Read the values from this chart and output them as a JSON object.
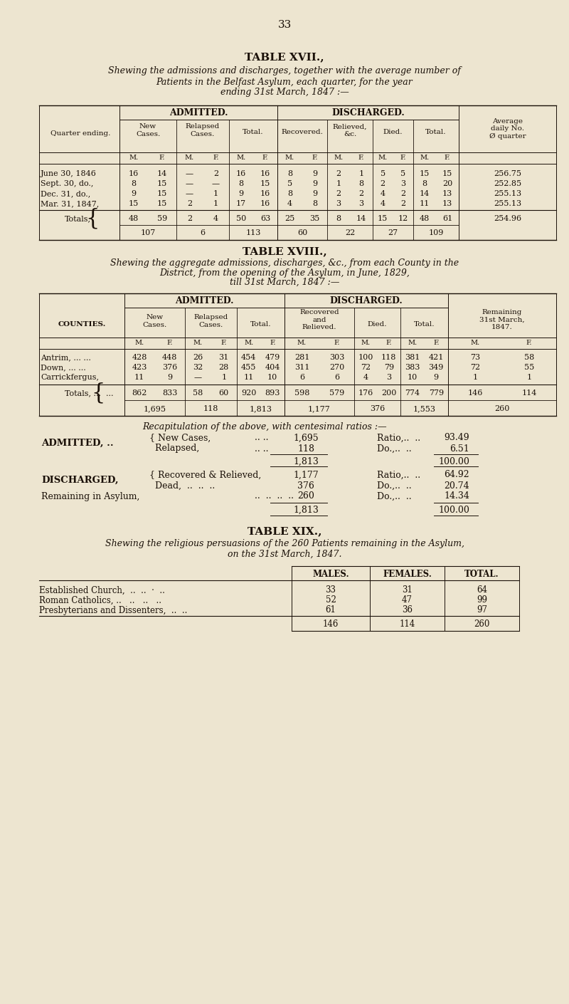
{
  "bg_color": "#ede5d0",
  "text_color": "#1a1008",
  "page_number": "33",
  "t17_title": "TABLE XVII.,",
  "t17_sub1": "Shewing the admissions and discharges, together with the average number of",
  "t17_sub2": "Patients in the Belfast Asylum, each quarter, for the year",
  "t17_sub3": "ending 31st March, 1847 :—",
  "t17_rows": [
    {
      "label": "June 30, 1846",
      "d": [
        "16",
        "14",
        "—",
        "2",
        "16",
        "16",
        "8",
        "9",
        "2",
        "1",
        "5",
        "5",
        "15",
        "15"
      ],
      "avg": "256.75"
    },
    {
      "label": "Sept. 30, do.,",
      "d": [
        "8",
        "15",
        "—",
        "—",
        "8",
        "15",
        "5",
        "9",
        "1",
        "8",
        "2",
        "3",
        "8",
        "20"
      ],
      "avg": "252.85"
    },
    {
      "label": "Dec. 31, do.,",
      "d": [
        "9",
        "15",
        "—",
        "1",
        "9",
        "16",
        "8",
        "9",
        "2",
        "2",
        "4",
        "2",
        "14",
        "13"
      ],
      "avg": "255.13"
    },
    {
      "label": "Mar. 31, 1847,",
      "d": [
        "15",
        "15",
        "2",
        "1",
        "17",
        "16",
        "4",
        "8",
        "3",
        "3",
        "4",
        "2",
        "11",
        "13"
      ],
      "avg": "255.13"
    }
  ],
  "t17_tot1": [
    "48",
    "59",
    "2",
    "4",
    "50",
    "63",
    "25",
    "35",
    "8",
    "14",
    "15",
    "12",
    "48",
    "61"
  ],
  "t17_tot2": [
    "107",
    "6",
    "113",
    "60",
    "22",
    "27",
    "109"
  ],
  "t17_tot_avg": "254.96",
  "t18_title": "TABLE XVIII.,",
  "t18_sub1": "Shewing the aggregate admissions, discharges, &c., from each County in the",
  "t18_sub2": "District, from the opening of the Asylum, in June, 1829,",
  "t18_sub3": "till 31st March, 1847 :—",
  "t18_rows": [
    {
      "label": "Antrim, ... ...",
      "d": [
        "428",
        "448",
        "26",
        "31",
        "454",
        "479",
        "281",
        "303",
        "100",
        "118",
        "381",
        "421",
        "73",
        "58"
      ]
    },
    {
      "label": "Down, ... ...",
      "d": [
        "423",
        "376",
        "32",
        "28",
        "455",
        "404",
        "311",
        "270",
        "72",
        "79",
        "383",
        "349",
        "72",
        "55"
      ]
    },
    {
      "label": "Carrickfergus,",
      "d": [
        "11",
        "9",
        "—",
        "1",
        "11",
        "10",
        "6",
        "6",
        "4",
        "3",
        "10",
        "9",
        "1",
        "1"
      ]
    }
  ],
  "t18_tot1": [
    "862",
    "833",
    "58",
    "60",
    "920",
    "893",
    "598",
    "579",
    "176",
    "200",
    "774",
    "779",
    "146",
    "114"
  ],
  "t18_tot2": [
    "1,695",
    "118",
    "1,813",
    "1,177",
    "376",
    "1,553",
    "260"
  ],
  "rc_title": "Recapitulation of the above, with centesimal ratios :—",
  "rc_adm_new": "1,695",
  "rc_adm_new_r": "93.49",
  "rc_adm_rel": "118",
  "rc_adm_rel_r": "6.51",
  "rc_adm_tot": "1,813",
  "rc_adm_tot_r": "100.00",
  "rc_dis_rec": "1,177",
  "rc_dis_rec_r": "64.92",
  "rc_dis_dead": "376",
  "rc_dis_dead_r": "20.74",
  "rc_rem": "260",
  "rc_rem_r": "14.34",
  "rc_grand": "1,813",
  "rc_grand_r": "100.00",
  "t19_title": "TABLE XIX.,",
  "t19_sub1": "Shewing the religious persuasions of the 260 Patients remaining in the Asylum,",
  "t19_sub2": "on the 31st March, 1847.",
  "t19_rows": [
    {
      "label": "Established Church,  ..  ..  ·  ..",
      "m": "33",
      "f": "31",
      "t": "64"
    },
    {
      "label": "Roman Catholics, ..   ..   ..   ..",
      "m": "52",
      "f": "47",
      "t": "99"
    },
    {
      "label": "Presbyterians and Dissenters,  ..  ..",
      "m": "61",
      "f": "36",
      "t": "97"
    }
  ],
  "t19_totals": {
    "m": "146",
    "f": "114",
    "t": "260"
  }
}
